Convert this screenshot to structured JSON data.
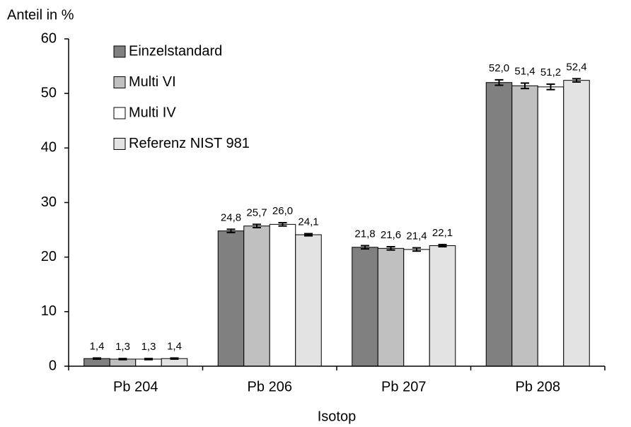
{
  "chart_data": {
    "type": "bar",
    "y_label": "Anteil in %",
    "x_label": "Isotop",
    "categories": [
      "Pb 204",
      "Pb 206",
      "Pb 207",
      "Pb 208"
    ],
    "series": [
      {
        "name": "Einzelstandard",
        "color": "#808080",
        "values": [
          1.4,
          24.8,
          21.8,
          52.0
        ],
        "value_labels": [
          "1,4",
          "24,8",
          "21,8",
          "52,0"
        ],
        "errors": [
          0.1,
          0.3,
          0.3,
          0.5
        ]
      },
      {
        "name": "Multi VI",
        "color": "#c0c0c0",
        "values": [
          1.3,
          25.7,
          21.6,
          51.4
        ],
        "value_labels": [
          "1,3",
          "25,7",
          "21,6",
          "51,4"
        ],
        "errors": [
          0.1,
          0.3,
          0.3,
          0.5
        ]
      },
      {
        "name": "Multi IV",
        "color": "#ffffff",
        "values": [
          1.3,
          26.0,
          21.4,
          51.2
        ],
        "value_labels": [
          "1,3",
          "26,0",
          "21,4",
          "51,2"
        ],
        "errors": [
          0.1,
          0.3,
          0.3,
          0.5
        ]
      },
      {
        "name": "Referenz NIST 981",
        "color": "#e3e3e3",
        "values": [
          1.4,
          24.1,
          22.1,
          52.4
        ],
        "value_labels": [
          "1,4",
          "24,1",
          "22,1",
          "52,4"
        ],
        "errors": [
          0.1,
          0.2,
          0.2,
          0.3
        ]
      }
    ],
    "ylim": [
      0,
      60
    ],
    "yticks": [
      0,
      10,
      20,
      30,
      40,
      50,
      60
    ],
    "grid": false,
    "legend": "upper left"
  }
}
